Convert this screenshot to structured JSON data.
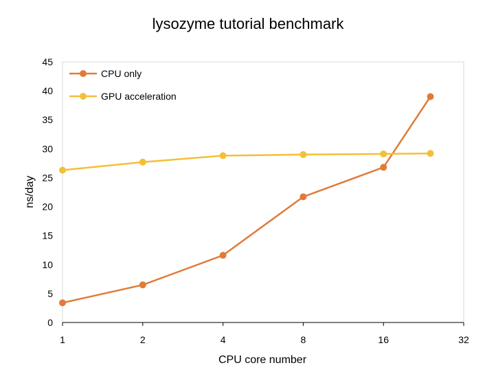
{
  "chart_data": {
    "type": "line",
    "title": "lysozyme tutorial benchmark",
    "xlabel": "CPU core number",
    "ylabel": "ns/day",
    "x_scale": "log2",
    "xlim": [
      1,
      32
    ],
    "ylim": [
      0,
      45
    ],
    "x_ticks": [
      {
        "value": 1,
        "label": "1"
      },
      {
        "value": 2,
        "label": "2"
      },
      {
        "value": 4,
        "label": "4"
      },
      {
        "value": 8,
        "label": "8"
      },
      {
        "value": 16,
        "label": "16"
      },
      {
        "value": 32,
        "label": "32"
      }
    ],
    "y_ticks": [
      {
        "value": 0,
        "label": "0"
      },
      {
        "value": 5,
        "label": "5"
      },
      {
        "value": 10,
        "label": "10"
      },
      {
        "value": 15,
        "label": "15"
      },
      {
        "value": 20,
        "label": "20"
      },
      {
        "value": 25,
        "label": "25"
      },
      {
        "value": 30,
        "label": "30"
      },
      {
        "value": 35,
        "label": "35"
      },
      {
        "value": 40,
        "label": "40"
      },
      {
        "value": 45,
        "label": "45"
      }
    ],
    "grid": false,
    "legend_position": "top-left",
    "series": [
      {
        "name": "CPU only",
        "color": "#E07B39",
        "x": [
          1,
          2,
          4,
          8,
          16,
          24
        ],
        "values": [
          3.4,
          6.5,
          11.6,
          21.7,
          26.8,
          39.0
        ]
      },
      {
        "name": "GPU acceleration",
        "color": "#F4BF37",
        "x": [
          1,
          2,
          4,
          8,
          16,
          24
        ],
        "values": [
          26.3,
          27.7,
          28.8,
          29.0,
          29.1,
          29.2
        ]
      }
    ]
  }
}
